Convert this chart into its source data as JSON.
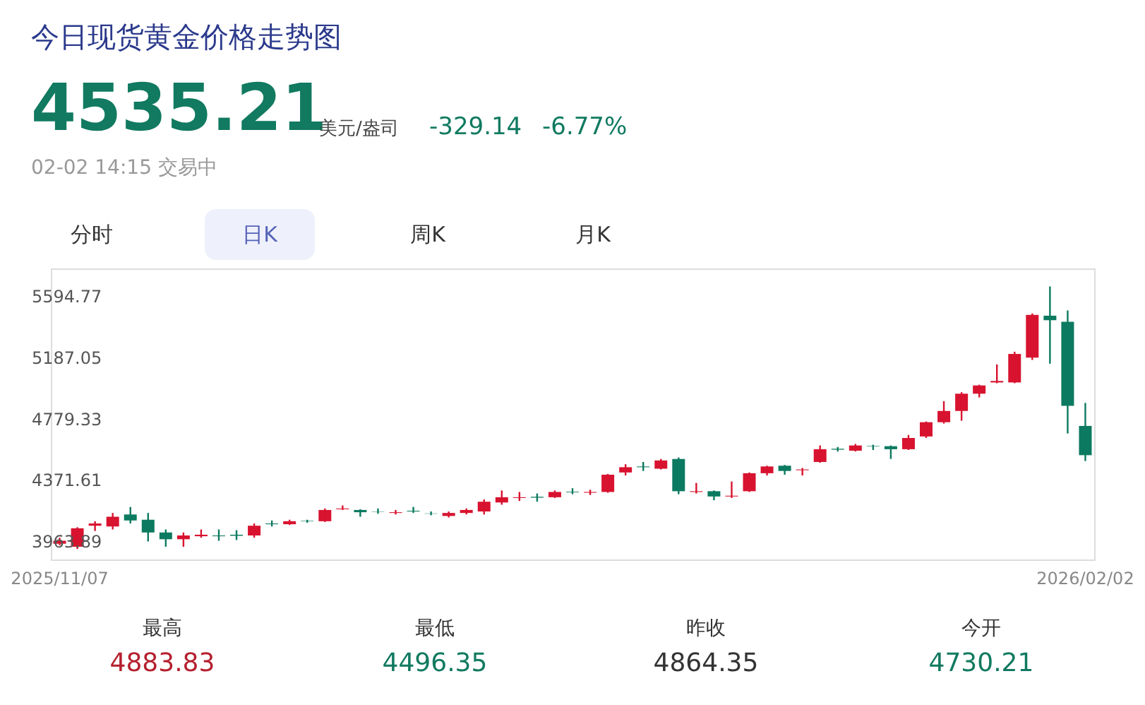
{
  "chart_data": {
    "type": "candlestick",
    "title": "今日现货黄金价格走势图",
    "annotations": [
      "4535.21",
      "美元/盎司",
      "-329.14",
      "-6.77%",
      "02-02 14:15 交易中",
      "分时",
      "日K",
      "周K",
      "月K",
      "最高",
      "4883.83",
      "最低",
      "4496.35",
      "昨收",
      "4864.35",
      "今开",
      "4730.21"
    ],
    "categories": [
      "2025/11/07",
      null,
      null,
      null,
      null,
      null,
      null,
      null,
      null,
      null,
      null,
      null,
      null,
      null,
      null,
      null,
      null,
      null,
      null,
      null,
      null,
      null,
      null,
      null,
      null,
      null,
      null,
      null,
      null,
      null,
      null,
      null,
      null,
      null,
      null,
      null,
      null,
      null,
      null,
      null,
      null,
      null,
      null,
      null,
      null,
      null,
      null,
      null,
      null,
      null,
      null,
      null,
      null,
      null,
      null,
      null,
      null,
      null,
      "2026/02/02"
    ],
    "ohlc": [
      [
        3945,
        3985,
        3935,
        3965
      ],
      [
        3925,
        4055,
        3910,
        4048
      ],
      [
        4065,
        4095,
        4030,
        4080
      ],
      [
        4060,
        4150,
        4040,
        4125
      ],
      [
        4140,
        4190,
        4080,
        4100
      ],
      [
        4105,
        4150,
        3960,
        4020
      ],
      [
        4020,
        4040,
        3925,
        3975
      ],
      [
        3975,
        4020,
        3925,
        4000
      ],
      [
        3995,
        4040,
        3985,
        4005
      ],
      [
        4000,
        4040,
        3965,
        3995
      ],
      [
        4005,
        4035,
        3970,
        3998
      ],
      [
        4000,
        4080,
        3985,
        4065
      ],
      [
        4080,
        4100,
        4060,
        4075
      ],
      [
        4075,
        4105,
        4070,
        4095
      ],
      [
        4098,
        4105,
        4085,
        4095
      ],
      [
        4095,
        4180,
        4090,
        4170
      ],
      [
        4175,
        4200,
        4170,
        4180
      ],
      [
        4170,
        4175,
        4125,
        4155
      ],
      [
        4160,
        4180,
        4145,
        4158
      ],
      [
        4150,
        4170,
        4140,
        4155
      ],
      [
        4165,
        4190,
        4150,
        4160
      ],
      [
        4147,
        4160,
        4135,
        4145
      ],
      [
        4130,
        4160,
        4120,
        4150
      ],
      [
        4150,
        4180,
        4140,
        4170
      ],
      [
        4160,
        4240,
        4140,
        4225
      ],
      [
        4220,
        4300,
        4205,
        4255
      ],
      [
        4250,
        4290,
        4230,
        4255
      ],
      [
        4258,
        4280,
        4225,
        4252
      ],
      [
        4255,
        4300,
        4250,
        4290
      ],
      [
        4292,
        4315,
        4275,
        4288
      ],
      [
        4285,
        4305,
        4270,
        4290
      ],
      [
        4290,
        4410,
        4285,
        4405
      ],
      [
        4420,
        4475,
        4400,
        4455
      ],
      [
        4460,
        4490,
        4430,
        4455
      ],
      [
        4445,
        4510,
        4440,
        4500
      ],
      [
        4510,
        4520,
        4275,
        4295
      ],
      [
        4290,
        4350,
        4280,
        4295
      ],
      [
        4295,
        4300,
        4235,
        4260
      ],
      [
        4260,
        4360,
        4250,
        4265
      ],
      [
        4295,
        4420,
        4290,
        4415
      ],
      [
        4415,
        4465,
        4400,
        4460
      ],
      [
        4465,
        4470,
        4405,
        4430
      ],
      [
        4435,
        4450,
        4400,
        4440
      ],
      [
        4490,
        4600,
        4485,
        4575
      ],
      [
        4578,
        4590,
        4560,
        4572
      ],
      [
        4565,
        4610,
        4560,
        4600
      ],
      [
        4598,
        4605,
        4570,
        4595
      ],
      [
        4595,
        4600,
        4510,
        4575
      ],
      [
        4575,
        4670,
        4570,
        4650
      ],
      [
        4660,
        4760,
        4650,
        4755
      ],
      [
        4755,
        4895,
        4746,
        4830
      ],
      [
        4830,
        4955,
        4765,
        4945
      ],
      [
        4945,
        5005,
        4920,
        5000
      ],
      [
        5020,
        5140,
        5015,
        5030
      ],
      [
        5020,
        5225,
        5015,
        5210
      ],
      [
        5185,
        5480,
        5170,
        5470
      ],
      [
        5465,
        5660,
        5145,
        5435
      ],
      [
        5425,
        5500,
        4680,
        4864.35
      ],
      [
        4730.21,
        4883.83,
        4496.35,
        4535.21
      ]
    ],
    "colors": [
      "#d8132f",
      "#d8132f",
      "#d8132f",
      "#d8132f",
      "#0c7a60",
      "#0c7a60",
      "#0c7a60",
      "#d8132f",
      "#d8132f",
      "#0c7a60",
      "#0c7a60",
      "#d8132f",
      "#0c7a60",
      "#d8132f",
      "#0c7a60",
      "#d8132f",
      "#d8132f",
      "#0c7a60",
      "#0c7a60",
      "#d8132f",
      "#0c7a60",
      "#0c7a60",
      "#d8132f",
      "#d8132f",
      "#d8132f",
      "#d8132f",
      "#d8132f",
      "#0c7a60",
      "#d8132f",
      "#0c7a60",
      "#d8132f",
      "#d8132f",
      "#d8132f",
      "#0c7a60",
      "#d8132f",
      "#0c7a60",
      "#d8132f",
      "#0c7a60",
      "#d8132f",
      "#d8132f",
      "#d8132f",
      "#0c7a60",
      "#d8132f",
      "#d8132f",
      "#0c7a60",
      "#d8132f",
      "#0c7a60",
      "#0c7a60",
      "#d8132f",
      "#d8132f",
      "#d8132f",
      "#d8132f",
      "#d8132f",
      "#d8132f",
      "#d8132f",
      "#d8132f",
      "#0c7a60",
      "#0c7a60",
      "#0c7a60"
    ],
    "ylim": [
      3840,
      5780
    ],
    "yticks": [
      3963.89,
      4371.61,
      4779.33,
      5187.05,
      5594.77
    ]
  }
}
